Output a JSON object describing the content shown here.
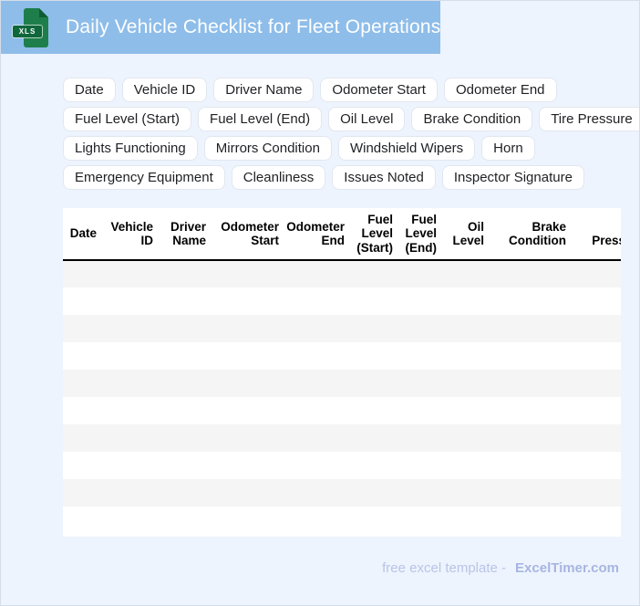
{
  "header": {
    "title": "Daily Vehicle Checklist for Fleet Operations",
    "file_badge": "XLS"
  },
  "chips": {
    "rows": [
      [
        "Date",
        "Vehicle ID",
        "Driver Name",
        "Odometer Start",
        "Odometer End"
      ],
      [
        "Fuel Level (Start)",
        "Fuel Level (End)",
        "Oil Level",
        "Brake Condition",
        "Tire Pressure"
      ],
      [
        "Lights Functioning",
        "Mirrors Condition",
        "Windshield Wipers",
        "Horn"
      ],
      [
        "Emergency Equipment",
        "Cleanliness",
        "Issues Noted",
        "Inspector Signature"
      ]
    ]
  },
  "table": {
    "columns": [
      "Date",
      "Vehicle ID",
      "Driver Name",
      "Odometer Start",
      "Odometer End",
      "Fuel Level (Start)",
      "Fuel Level (End)",
      "Oil Level",
      "Brake Condition",
      "Tire Pressure"
    ],
    "empty_row_count": 10
  },
  "footer": {
    "text": "free excel template -",
    "brand": "ExcelTimer.com"
  },
  "colors": {
    "titlebar_bg": "#8ebde9",
    "page_bg": "#edf4fd",
    "icon_green": "#1e7e4b",
    "icon_band_green": "#0f673c",
    "icon_fold_green": "#0e5c35",
    "row_stripe": "#f5f5f5",
    "header_rule": "#000000",
    "footer_text": "#b9c4e8",
    "footer_brand": "#a7b5e1"
  }
}
